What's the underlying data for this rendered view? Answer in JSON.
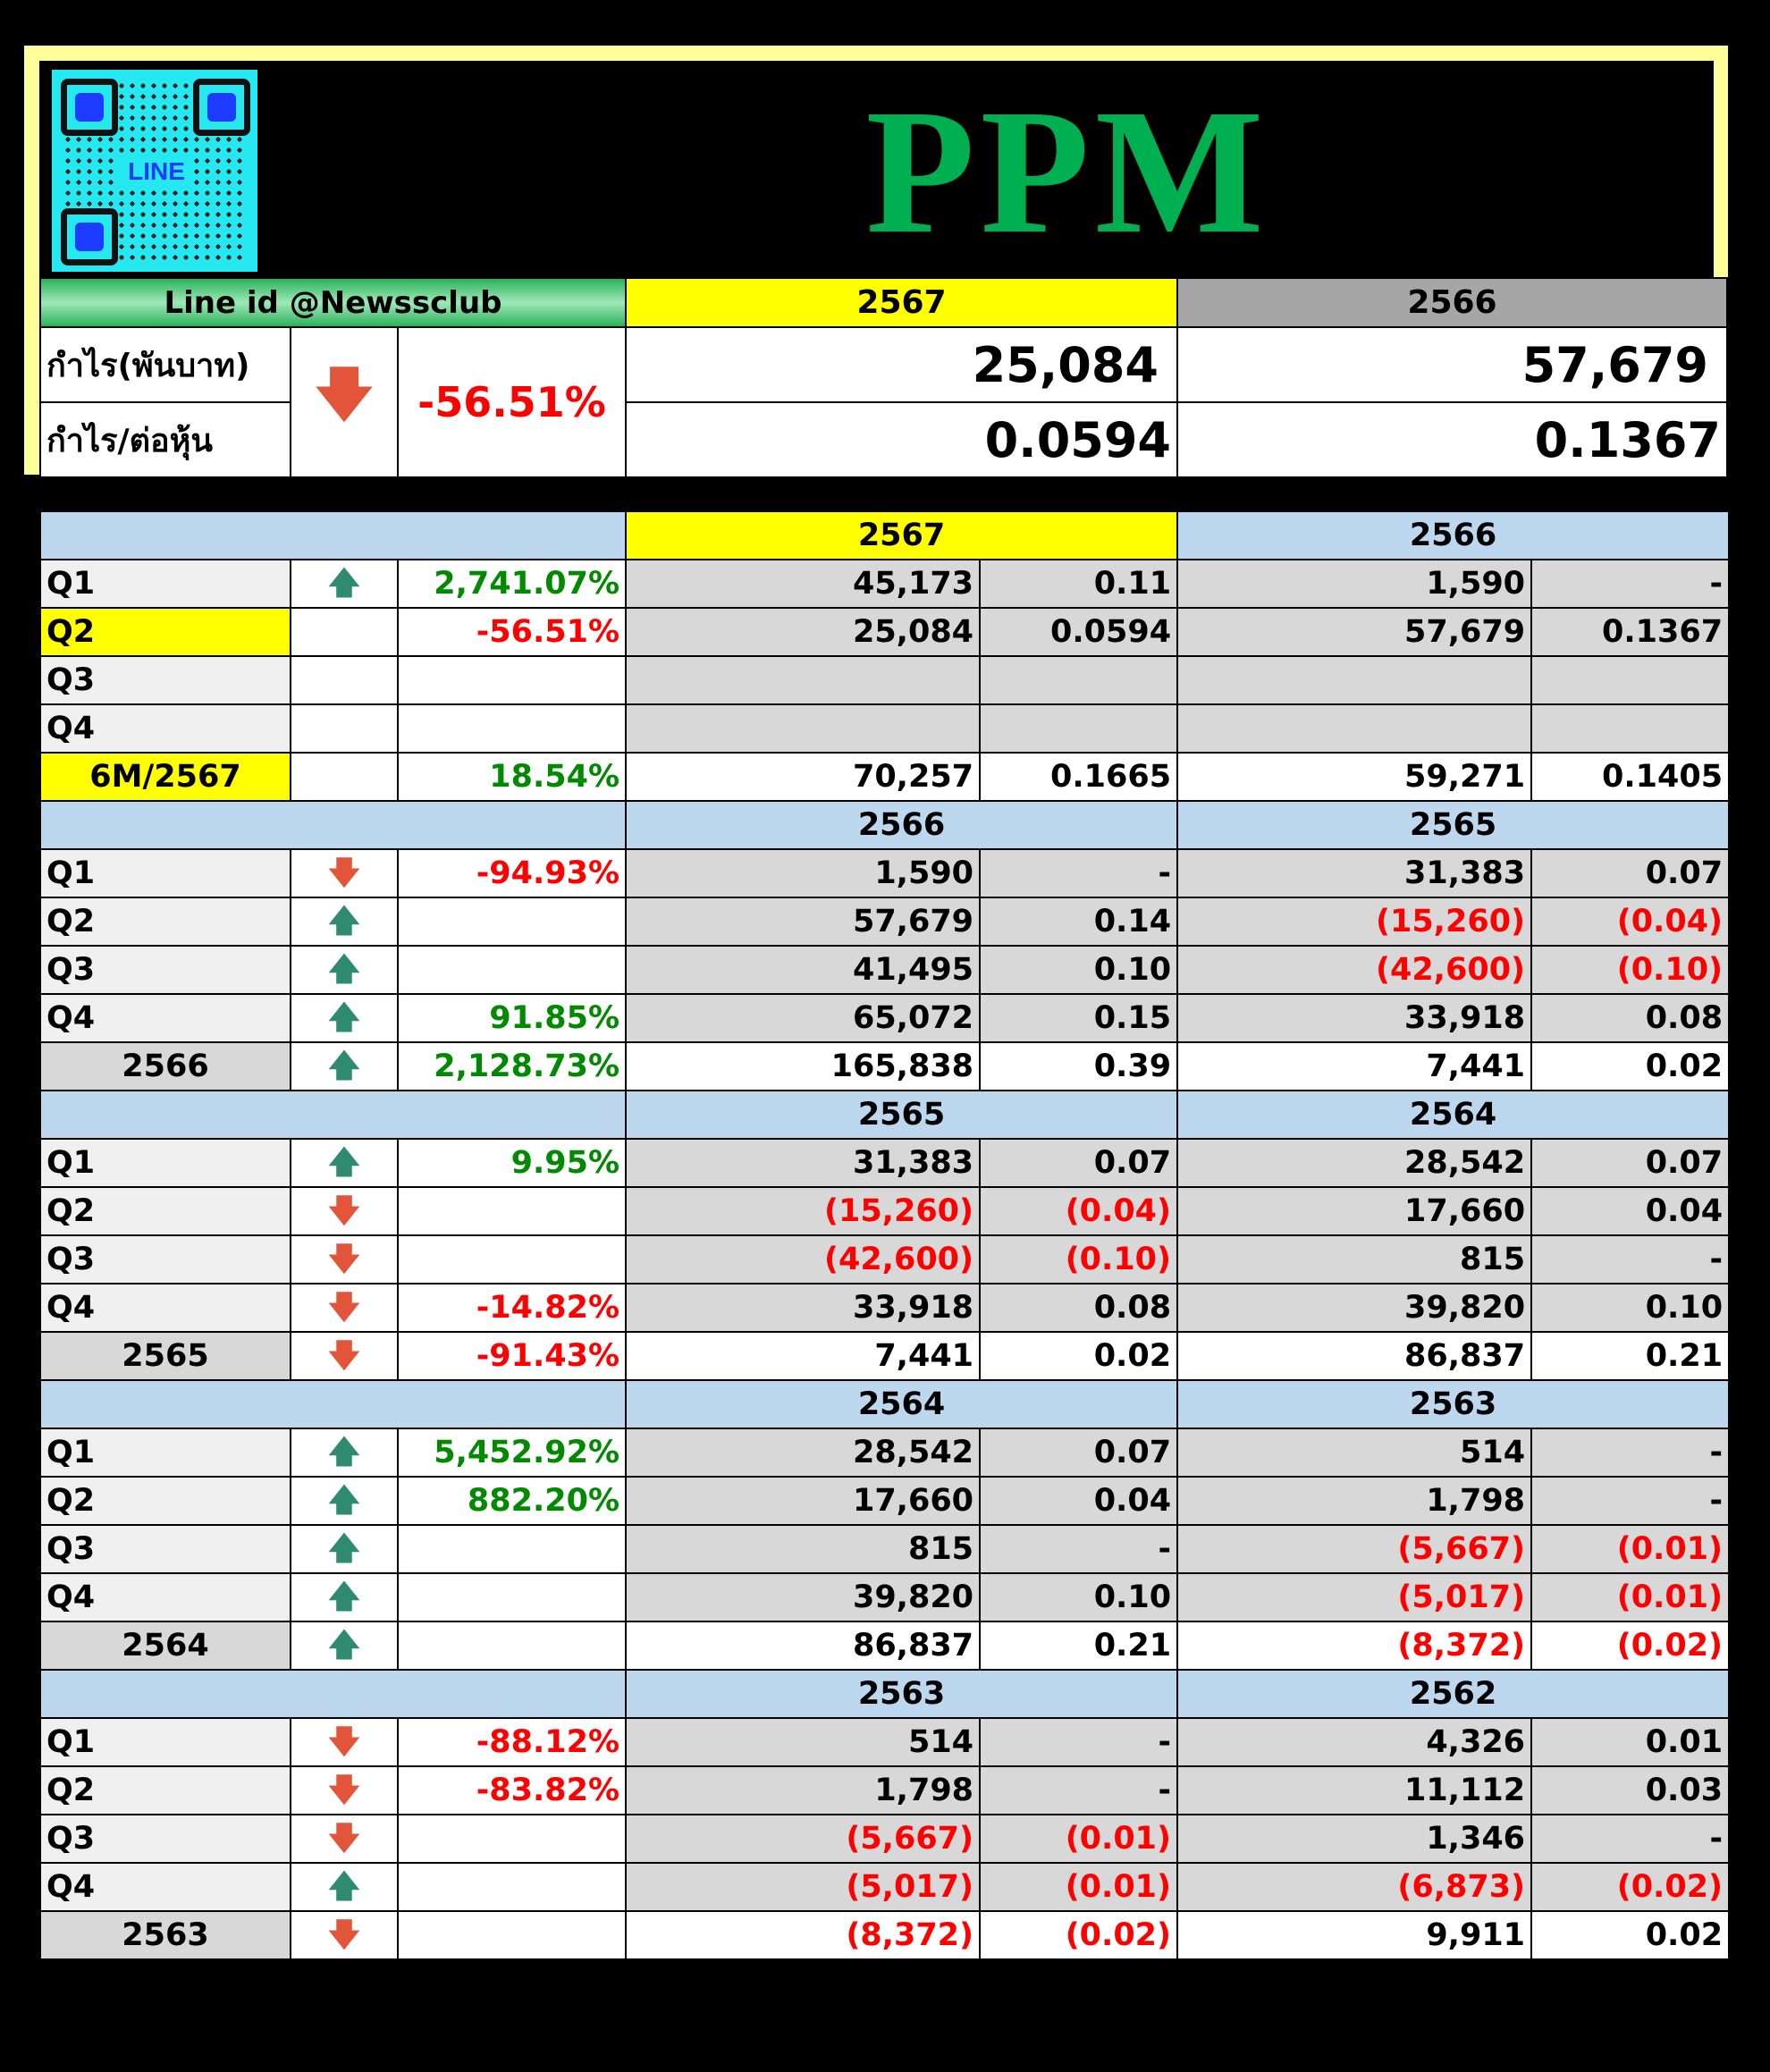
{
  "header": {
    "qr_label": "LINE",
    "title": "PPM",
    "line_id": "Line id @Newssclub",
    "year_current": "2567",
    "year_previous": "2566",
    "profit_label": "กำไร(พันบาท)",
    "eps_label": "กำไร/ต่อหุ้น",
    "change": "-56.51%",
    "direction": "down",
    "profit_current": "25,084",
    "profit_previous": "57,679",
    "eps_current": "0.0594",
    "eps_previous": "0.1367"
  },
  "sections": [
    {
      "year_a": "2567",
      "year_b": "2566",
      "highlight": true,
      "rows": [
        {
          "label": "Q1",
          "arrow": "up",
          "pct": "2,741.07%",
          "a1": "1",
          "a_profit": "45,173",
          "a_eps": "0.11",
          "b_profit": "1,590",
          "b_eps": "-"
        },
        {
          "label": "Q2",
          "arrow": "",
          "pct": "-56.51%",
          "a_profit": "25,084",
          "a_eps": "0.0594",
          "b_profit": "57,679",
          "b_eps": "0.1367",
          "label_yellow": true
        },
        {
          "label": "Q3",
          "arrow": "",
          "pct": "",
          "a_profit": "",
          "a_eps": "",
          "b_profit": "",
          "b_eps": ""
        },
        {
          "label": "Q4",
          "arrow": "",
          "pct": "",
          "a_profit": "",
          "a_eps": "",
          "b_profit": "",
          "b_eps": ""
        },
        {
          "label": "6M/2567",
          "arrow": "",
          "pct": "18.54%",
          "a_profit": "70,257",
          "a_eps": "0.1665",
          "b_profit": "59,271",
          "b_eps": "0.1405",
          "total": true,
          "label_yellow": true
        }
      ]
    },
    {
      "year_a": "2566",
      "year_b": "2565",
      "rows": [
        {
          "label": "Q1",
          "arrow": "down",
          "pct": "-94.93%",
          "a_profit": "1,590",
          "a_eps": "-",
          "b_profit": "31,383",
          "b_eps": "0.07"
        },
        {
          "label": "Q2",
          "arrow": "up",
          "pct": "",
          "a_profit": "57,679",
          "a_eps": "0.14",
          "b_profit": "(15,260)",
          "b_eps": "(0.04)"
        },
        {
          "label": "Q3",
          "arrow": "up",
          "pct": "",
          "a_profit": "41,495",
          "a_eps": "0.10",
          "b_profit": "(42,600)",
          "b_eps": "(0.10)"
        },
        {
          "label": "Q4",
          "arrow": "up",
          "pct": "91.85%",
          "a_profit": "65,072",
          "a_eps": "0.15",
          "b_profit": "33,918",
          "b_eps": "0.08"
        },
        {
          "label": "2566",
          "arrow": "up",
          "pct": "2,128.73%",
          "a_profit": "165,838",
          "a_eps": "0.39",
          "b_profit": "7,441",
          "b_eps": "0.02",
          "total": true
        }
      ]
    },
    {
      "year_a": "2565",
      "year_b": "2564",
      "rows": [
        {
          "label": "Q1",
          "arrow": "up",
          "pct": "9.95%",
          "a_profit": "31,383",
          "a_eps": "0.07",
          "b_profit": "28,542",
          "b_eps": "0.07"
        },
        {
          "label": "Q2",
          "arrow": "down",
          "pct": "",
          "a_profit": "(15,260)",
          "a_eps": "(0.04)",
          "b_profit": "17,660",
          "b_eps": "0.04"
        },
        {
          "label": "Q3",
          "arrow": "down",
          "pct": "",
          "a_profit": "(42,600)",
          "a_eps": "(0.10)",
          "b_profit": "815",
          "b_eps": "-"
        },
        {
          "label": "Q4",
          "arrow": "down",
          "pct": "-14.82%",
          "a_profit": "33,918",
          "a_eps": "0.08",
          "b_profit": "39,820",
          "b_eps": "0.10"
        },
        {
          "label": "2565",
          "arrow": "down",
          "pct": "-91.43%",
          "a_profit": "7,441",
          "a_eps": "0.02",
          "b_profit": "86,837",
          "b_eps": "0.21",
          "total": true
        }
      ]
    },
    {
      "year_a": "2564",
      "year_b": "2563",
      "rows": [
        {
          "label": "Q1",
          "arrow": "up",
          "pct": "5,452.92%",
          "a_profit": "28,542",
          "a_eps": "0.07",
          "b_profit": "514",
          "b_eps": "-"
        },
        {
          "label": "Q2",
          "arrow": "up",
          "pct": "882.20%",
          "a_profit": "17,660",
          "a_eps": "0.04",
          "b_profit": "1,798",
          "b_eps": "-"
        },
        {
          "label": "Q3",
          "arrow": "up",
          "pct": "",
          "a_profit": "815",
          "a_eps": "-",
          "b_profit": "(5,667)",
          "b_eps": "(0.01)"
        },
        {
          "label": "Q4",
          "arrow": "up",
          "pct": "",
          "a_profit": "39,820",
          "a_eps": "0.10",
          "b_profit": "(5,017)",
          "b_eps": "(0.01)"
        },
        {
          "label": "2564",
          "arrow": "up",
          "pct": "",
          "a_profit": "86,837",
          "a_eps": "0.21",
          "b_profit": "(8,372)",
          "b_eps": "(0.02)",
          "total": true
        }
      ]
    },
    {
      "year_a": "2563",
      "year_b": "2562",
      "rows": [
        {
          "label": "Q1",
          "arrow": "down",
          "pct": "-88.12%",
          "a_profit": "514",
          "a_eps": "-",
          "b_profit": "4,326",
          "b_eps": "0.01"
        },
        {
          "label": "Q2",
          "arrow": "down",
          "pct": "-83.82%",
          "a_profit": "1,798",
          "a_eps": "-",
          "b_profit": "11,112",
          "b_eps": "0.03"
        },
        {
          "label": "Q3",
          "arrow": "down",
          "pct": "",
          "a_profit": "(5,667)",
          "a_eps": "(0.01)",
          "b_profit": "1,346",
          "b_eps": "-"
        },
        {
          "label": "Q4",
          "arrow": "up",
          "pct": "",
          "a_profit": "(5,017)",
          "a_eps": "(0.01)",
          "b_profit": "(6,873)",
          "b_eps": "(0.02)"
        },
        {
          "label": "2563",
          "arrow": "down",
          "pct": "",
          "a_profit": "(8,372)",
          "a_eps": "(0.02)",
          "b_profit": "9,911",
          "b_eps": "0.02",
          "total": true
        }
      ]
    }
  ],
  "colors": {
    "positive_pct": "#008a00",
    "negative": "#ff0000",
    "arrow_up": "#2e8b6f",
    "arrow_down": "#e2553a",
    "section_header": "#bdd7ee",
    "highlight_year": "#ffff00",
    "title_green": "#00b050"
  }
}
